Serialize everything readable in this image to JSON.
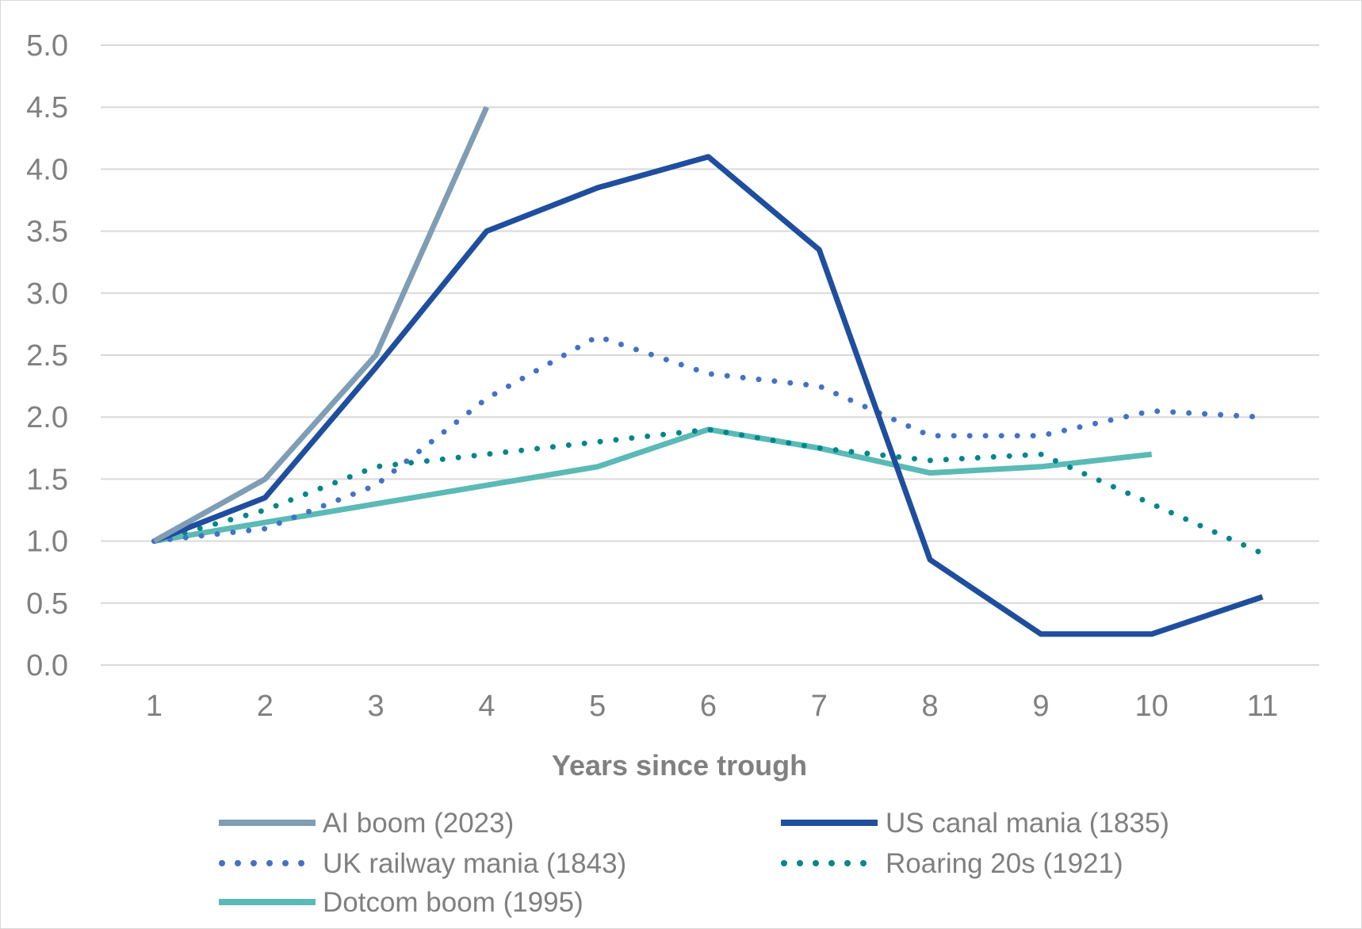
{
  "chart_data": {
    "type": "line",
    "title": "",
    "xlabel": "Years since trough",
    "ylabel": "",
    "x": [
      1,
      2,
      3,
      4,
      5,
      6,
      7,
      8,
      9,
      10,
      11
    ],
    "x_tick_labels": [
      "1",
      "2",
      "3",
      "4",
      "5",
      "6",
      "7",
      "8",
      "9",
      "10",
      "11"
    ],
    "y_tick_labels": [
      "0.0",
      "0.5",
      "1.0",
      "1.5",
      "2.0",
      "2.5",
      "3.0",
      "3.5",
      "4.0",
      "4.5",
      "5.0"
    ],
    "ylim": [
      0,
      5
    ],
    "grid": "horizontal",
    "legend_position": "bottom",
    "series": [
      {
        "name": "AI boom (2023)",
        "color": "#7f9db4",
        "style": "solid",
        "values": [
          1.0,
          1.5,
          2.5,
          4.5,
          null,
          null,
          null,
          null,
          null,
          null,
          null
        ]
      },
      {
        "name": "US canal mania (1835)",
        "color": "#1f4e9e",
        "style": "solid",
        "values": [
          1.0,
          1.35,
          2.4,
          3.5,
          3.85,
          4.1,
          3.35,
          0.85,
          0.25,
          0.25,
          0.55
        ]
      },
      {
        "name": "UK railway mania (1843)",
        "color": "#4472c4",
        "style": "dotted",
        "values": [
          1.0,
          1.1,
          1.45,
          2.15,
          2.65,
          2.35,
          2.25,
          1.85,
          1.85,
          2.05,
          2.0
        ]
      },
      {
        "name": "Roaring 20s (1921)",
        "color": "#00868b",
        "style": "dotted",
        "values": [
          1.0,
          1.25,
          1.6,
          1.7,
          1.8,
          1.9,
          1.75,
          1.65,
          1.7,
          1.3,
          0.9
        ]
      },
      {
        "name": "Dotcom boom (1995)",
        "color": "#5bbab5",
        "style": "solid",
        "values": [
          1.0,
          1.15,
          1.3,
          1.45,
          1.6,
          1.9,
          1.75,
          1.55,
          1.6,
          1.7,
          null
        ]
      }
    ]
  }
}
